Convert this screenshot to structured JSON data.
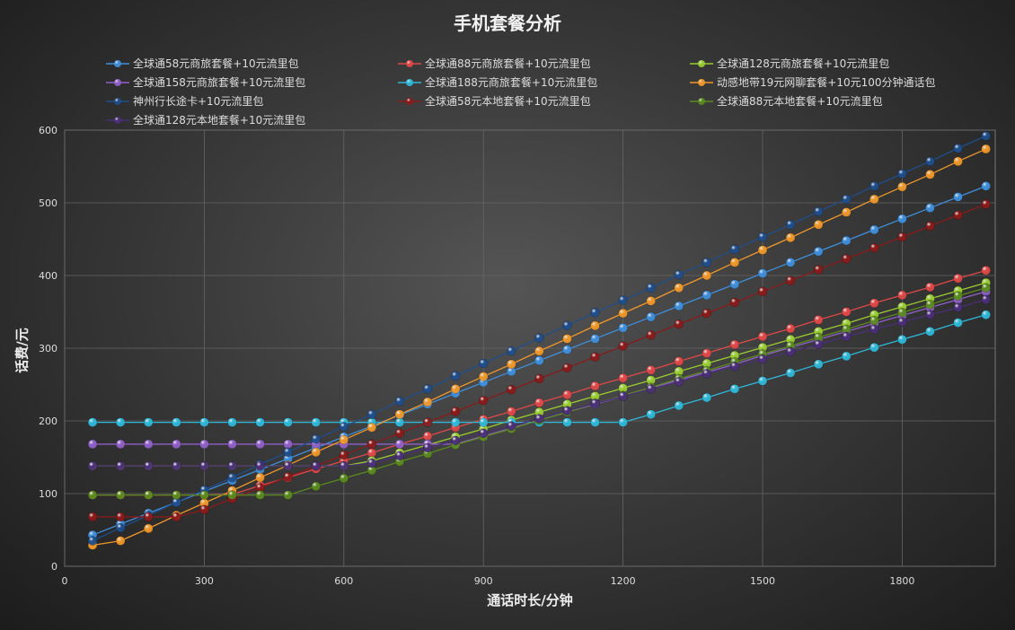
{
  "chart_data": {
    "type": "line",
    "title": "手机套餐分析",
    "xlabel": "通话时长/分钟",
    "ylabel": "话费/元",
    "xlim": [
      0,
      2000
    ],
    "ylim": [
      0,
      600
    ],
    "xticks": [
      0,
      300,
      600,
      900,
      1200,
      1500,
      1800
    ],
    "yticks": [
      0,
      100,
      200,
      300,
      400,
      500,
      600
    ],
    "grid": true,
    "legend_position": "top",
    "x": [
      60,
      120,
      180,
      240,
      300,
      360,
      420,
      480,
      540,
      600,
      660,
      720,
      780,
      840,
      900,
      960,
      1020,
      1080,
      1140,
      1200,
      1260,
      1320,
      1380,
      1440,
      1500,
      1560,
      1620,
      1680,
      1740,
      1800,
      1860,
      1920,
      1980
    ],
    "series": [
      {
        "name": "全球通58元商旅套餐+10元流里包",
        "color": "#3f8fdc",
        "values": [
          43,
          58,
          73,
          88,
          103,
          118,
          133,
          148,
          163,
          178,
          193,
          208,
          223,
          238,
          253,
          268,
          283,
          298,
          313,
          328,
          343,
          358,
          373,
          388,
          403,
          418,
          433,
          448,
          463,
          478,
          493,
          508,
          523
        ]
      },
      {
        "name": "全球通88元商旅套餐+10元流里包",
        "color": "#e04848",
        "values": [
          98,
          98,
          98,
          98,
          98,
          99,
          111,
          122,
          134,
          145,
          156,
          168,
          179,
          191,
          202,
          213,
          225,
          236,
          248,
          259,
          270,
          282,
          293,
          305,
          316,
          327,
          339,
          350,
          362,
          373,
          384,
          396,
          407
        ]
      },
      {
        "name": "全球通128元商旅套餐+10元流里包",
        "color": "#9acd32",
        "values": [
          138,
          138,
          138,
          138,
          138,
          138,
          138,
          138,
          138,
          138,
          145,
          156,
          167,
          178,
          189,
          201,
          212,
          223,
          234,
          245,
          256,
          268,
          279,
          290,
          301,
          312,
          323,
          334,
          346,
          357,
          368,
          379,
          390
        ]
      },
      {
        "name": "全球通158元商旅套餐+10元流里包",
        "color": "#9060c8",
        "values": [
          168,
          168,
          168,
          168,
          168,
          168,
          168,
          168,
          168,
          168,
          168,
          168,
          168,
          168,
          179,
          190,
          201,
          212,
          223,
          234,
          245,
          256,
          267,
          278,
          290,
          301,
          312,
          323,
          334,
          345,
          356,
          367,
          378
        ]
      },
      {
        "name": "全球通188元商旅套餐+10元流里包",
        "color": "#30b8d8",
        "values": [
          198,
          198,
          198,
          198,
          198,
          198,
          198,
          198,
          198,
          198,
          198,
          198,
          198,
          198,
          198,
          198,
          198,
          198,
          198,
          198,
          209,
          221,
          232,
          244,
          255,
          266,
          278,
          289,
          301,
          312,
          323,
          335,
          346
        ]
      },
      {
        "name": "动感地带19元网聊套餐+10元100分钟通话包",
        "color": "#f0982a",
        "values": [
          29,
          35,
          52,
          70,
          87,
          104,
          122,
          139,
          157,
          174,
          191,
          209,
          226,
          244,
          261,
          278,
          296,
          313,
          331,
          348,
          365,
          383,
          400,
          418,
          435,
          452,
          470,
          487,
          505,
          522,
          539,
          557,
          574
        ]
      },
      {
        "name": "神州行长途卡+10元流里包",
        "color": "#1f4e8c",
        "values": [
          35,
          53,
          70,
          88,
          105,
          122,
          140,
          157,
          175,
          192,
          209,
          227,
          244,
          262,
          279,
          296,
          314,
          331,
          349,
          366,
          383,
          401,
          418,
          436,
          453,
          470,
          488,
          505,
          523,
          540,
          557,
          575,
          592
        ]
      },
      {
        "name": "全球通58元本地套餐+10元流里包",
        "color": "#8b1a1a",
        "values": [
          68,
          68,
          68,
          68,
          78,
          93,
          108,
          123,
          138,
          153,
          168,
          183,
          198,
          213,
          228,
          243,
          258,
          273,
          288,
          303,
          318,
          333,
          348,
          363,
          378,
          393,
          408,
          423,
          438,
          453,
          468,
          483,
          498
        ]
      },
      {
        "name": "全球通88元本地套餐+10元流里包",
        "color": "#5a8a1e",
        "values": [
          98,
          98,
          98,
          98,
          98,
          98,
          98,
          98,
          110,
          121,
          132,
          144,
          155,
          167,
          178,
          189,
          201,
          212,
          224,
          235,
          246,
          258,
          269,
          281,
          292,
          303,
          315,
          326,
          338,
          349,
          360,
          372,
          383
        ]
      },
      {
        "name": "全球通128元本地套餐+10元流里包",
        "color": "#4a2e78",
        "values": [
          138,
          138,
          138,
          138,
          138,
          138,
          138,
          138,
          138,
          138,
          142,
          152,
          163,
          173,
          183,
          193,
          203,
          214,
          224,
          234,
          244,
          254,
          265,
          275,
          285,
          295,
          305,
          316,
          326,
          336,
          346,
          356,
          367
        ]
      }
    ]
  }
}
